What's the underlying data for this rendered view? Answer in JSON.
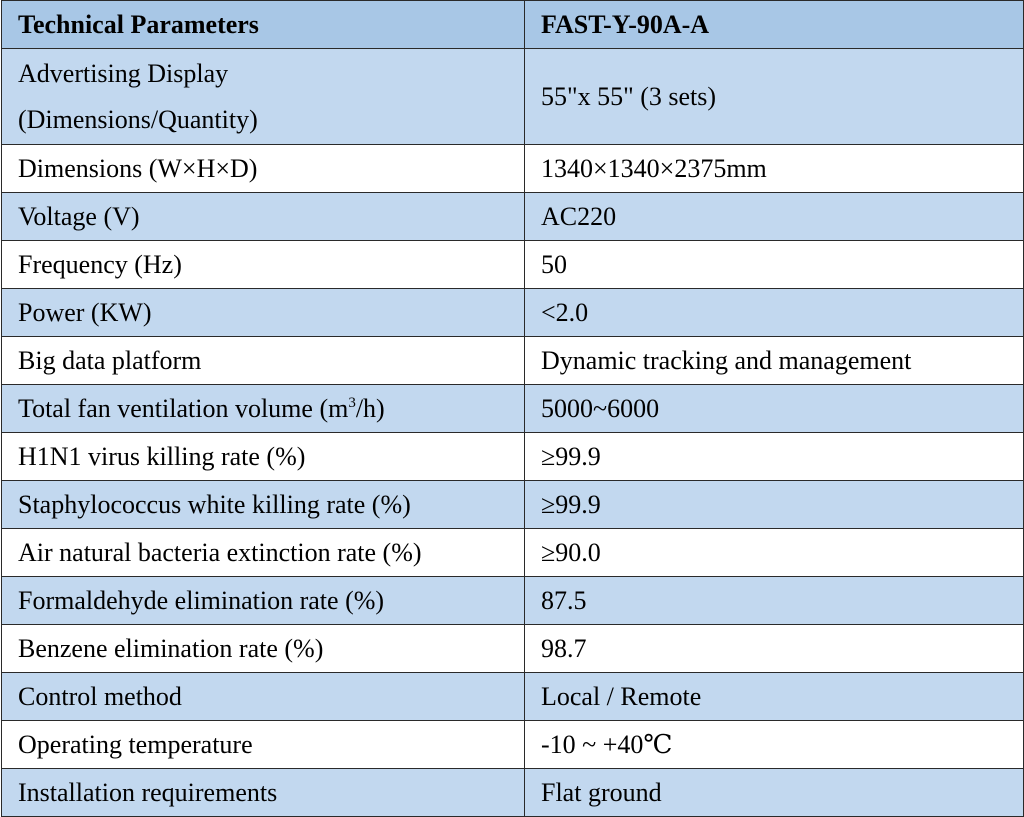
{
  "colors": {
    "header_bg": "#a8c7e6",
    "shaded_row_bg": "#c2d8ef",
    "plain_row_bg": "#ffffff",
    "border": "#2a2a2a"
  },
  "table": {
    "header": {
      "parameter": "Technical Parameters",
      "model": "FAST-Y-90A-A"
    },
    "rows": [
      {
        "parameter_line1": "Advertising Display",
        "parameter_line2": "(Dimensions/Quantity)",
        "value": "55\"x 55\" (3 sets)",
        "shaded": true
      },
      {
        "parameter": "Dimensions (W×H×D)",
        "value": "1340×1340×2375mm",
        "shaded": false
      },
      {
        "parameter": "Voltage (V)",
        "value": "AC220",
        "shaded": true
      },
      {
        "parameter": "Frequency (Hz)",
        "value": "50",
        "shaded": false
      },
      {
        "parameter": "Power (KW)",
        "value": "<2.0",
        "shaded": true
      },
      {
        "parameter": "Big data platform",
        "value": "Dynamic tracking and management",
        "shaded": false
      },
      {
        "parameter_prefix": "Total fan ventilation volume (m",
        "parameter_sup": "3",
        "parameter_suffix": "/h)",
        "value": "5000~6000",
        "shaded": true
      },
      {
        "parameter": "H1N1 virus killing rate (%)",
        "value": "≥99.9",
        "shaded": false
      },
      {
        "parameter": "Staphylococcus white killing rate (%)",
        "value": "≥99.9",
        "shaded": true
      },
      {
        "parameter": "Air natural bacteria extinction rate (%)",
        "value": "≥90.0",
        "shaded": false
      },
      {
        "parameter": "Formaldehyde elimination rate (%)",
        "value": "87.5",
        "shaded": true
      },
      {
        "parameter": "Benzene elimination rate (%)",
        "value": "98.7",
        "shaded": false
      },
      {
        "parameter": "Control method",
        "value": "Local / Remote",
        "shaded": true
      },
      {
        "parameter": "Operating temperature",
        "value": "-10 ~ +40℃",
        "shaded": false
      },
      {
        "parameter": "Installation requirements",
        "value": "Flat ground",
        "shaded": true
      }
    ]
  }
}
